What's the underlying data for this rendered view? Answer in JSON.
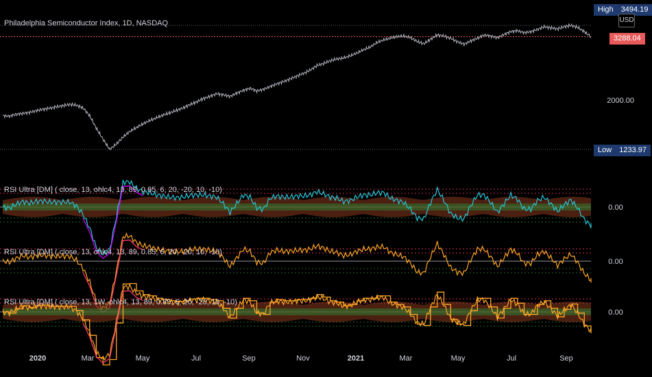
{
  "header": {
    "title": "Philadelphia Semiconductor Index, 1D, NASDAQ"
  },
  "price_scale": {
    "high_label": "High",
    "high_value": "3494.19",
    "current_value": "3288.04",
    "currency": "USD",
    "mid_value": "2000.00",
    "low_label": "Low",
    "low_value": "1233.97"
  },
  "panes": [
    {
      "label": "RSI Ultra [DM] ( close, 13, ohlc4, 13, 89, 0.85, 6, 20, -20, 10, -10)",
      "zero_label": "0.00"
    },
    {
      "label": "RSI Ultra [DM] ( close, 13, ohlc4, 13, 89, 0.85, 6, 20, -20, 10, -10)",
      "zero_label": "0.00"
    },
    {
      "label": "RSI Ultra [DM] ( close, 13, 1W, ohlc4, 13, 89, 0.85, 6, 20, -20, 10, -10)",
      "zero_label": "0.00"
    }
  ],
  "colors": {
    "price": "#b2b5be",
    "bull": "#26c6da",
    "bear": "#d000ff",
    "bear2": "#ff3b6b",
    "orange": "#ffa726",
    "green": "#2e7d32",
    "band": "#8b3a1f",
    "grid": "#2a2e39"
  },
  "chart_data": {
    "type": "line",
    "x_ticks": [
      "2020",
      "Mar",
      "May",
      "Jul",
      "Sep",
      "Nov",
      "2021",
      "Mar",
      "May",
      "Jul",
      "Sep"
    ],
    "series": [
      {
        "values": [
          1850,
          1840,
          1875,
          1890,
          1910,
          1940,
          1965,
          1985,
          2010,
          2030,
          2055,
          2040,
          1990,
          1850,
          1620,
          1420,
          1234,
          1330,
          1460,
          1560,
          1630,
          1700,
          1760,
          1810,
          1860,
          1900,
          1945,
          1990,
          2050,
          2100,
          2160,
          2200,
          2250,
          2230,
          2200,
          2260,
          2310,
          2350,
          2300,
          2330,
          2380,
          2430,
          2470,
          2520,
          2570,
          2620,
          2680,
          2760,
          2800,
          2850,
          2880,
          2900,
          2940,
          2990,
          3050,
          3100,
          3180,
          3230,
          3260,
          3290,
          3300,
          3270,
          3200,
          3160,
          3240,
          3320,
          3300,
          3260,
          3200,
          3150,
          3210,
          3260,
          3320,
          3300,
          3270,
          3330,
          3380,
          3400,
          3360,
          3380,
          3420,
          3470,
          3450,
          3430,
          3470,
          3494,
          3460,
          3380,
          3288
        ]
      }
    ]
  }
}
